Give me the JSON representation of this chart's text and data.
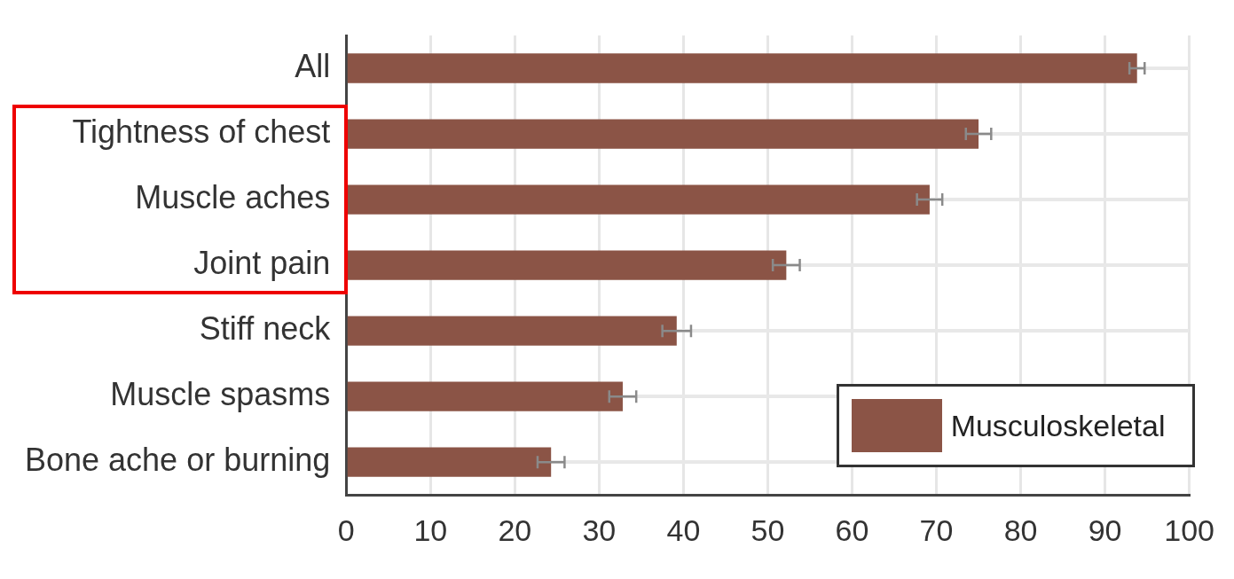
{
  "chart_data": {
    "type": "bar",
    "orientation": "horizontal",
    "categories": [
      "All",
      "Tightness of chest",
      "Muscle aches",
      "Joint pain",
      "Stiff neck",
      "Muscle spasms",
      "Bone ache or burning"
    ],
    "series": [
      {
        "name": "Musculoskeletal",
        "color": "#8b5446",
        "values": [
          93.8,
          75,
          69.2,
          52.2,
          39.2,
          32.8,
          24.3
        ],
        "errors": [
          0.9,
          1.5,
          1.5,
          1.6,
          1.7,
          1.6,
          1.6
        ]
      }
    ],
    "xlim": [
      0,
      100
    ],
    "xticks": [
      0,
      10,
      20,
      30,
      40,
      50,
      60,
      70,
      80,
      90,
      100
    ],
    "grid": true,
    "legend": "bottom right"
  }
}
